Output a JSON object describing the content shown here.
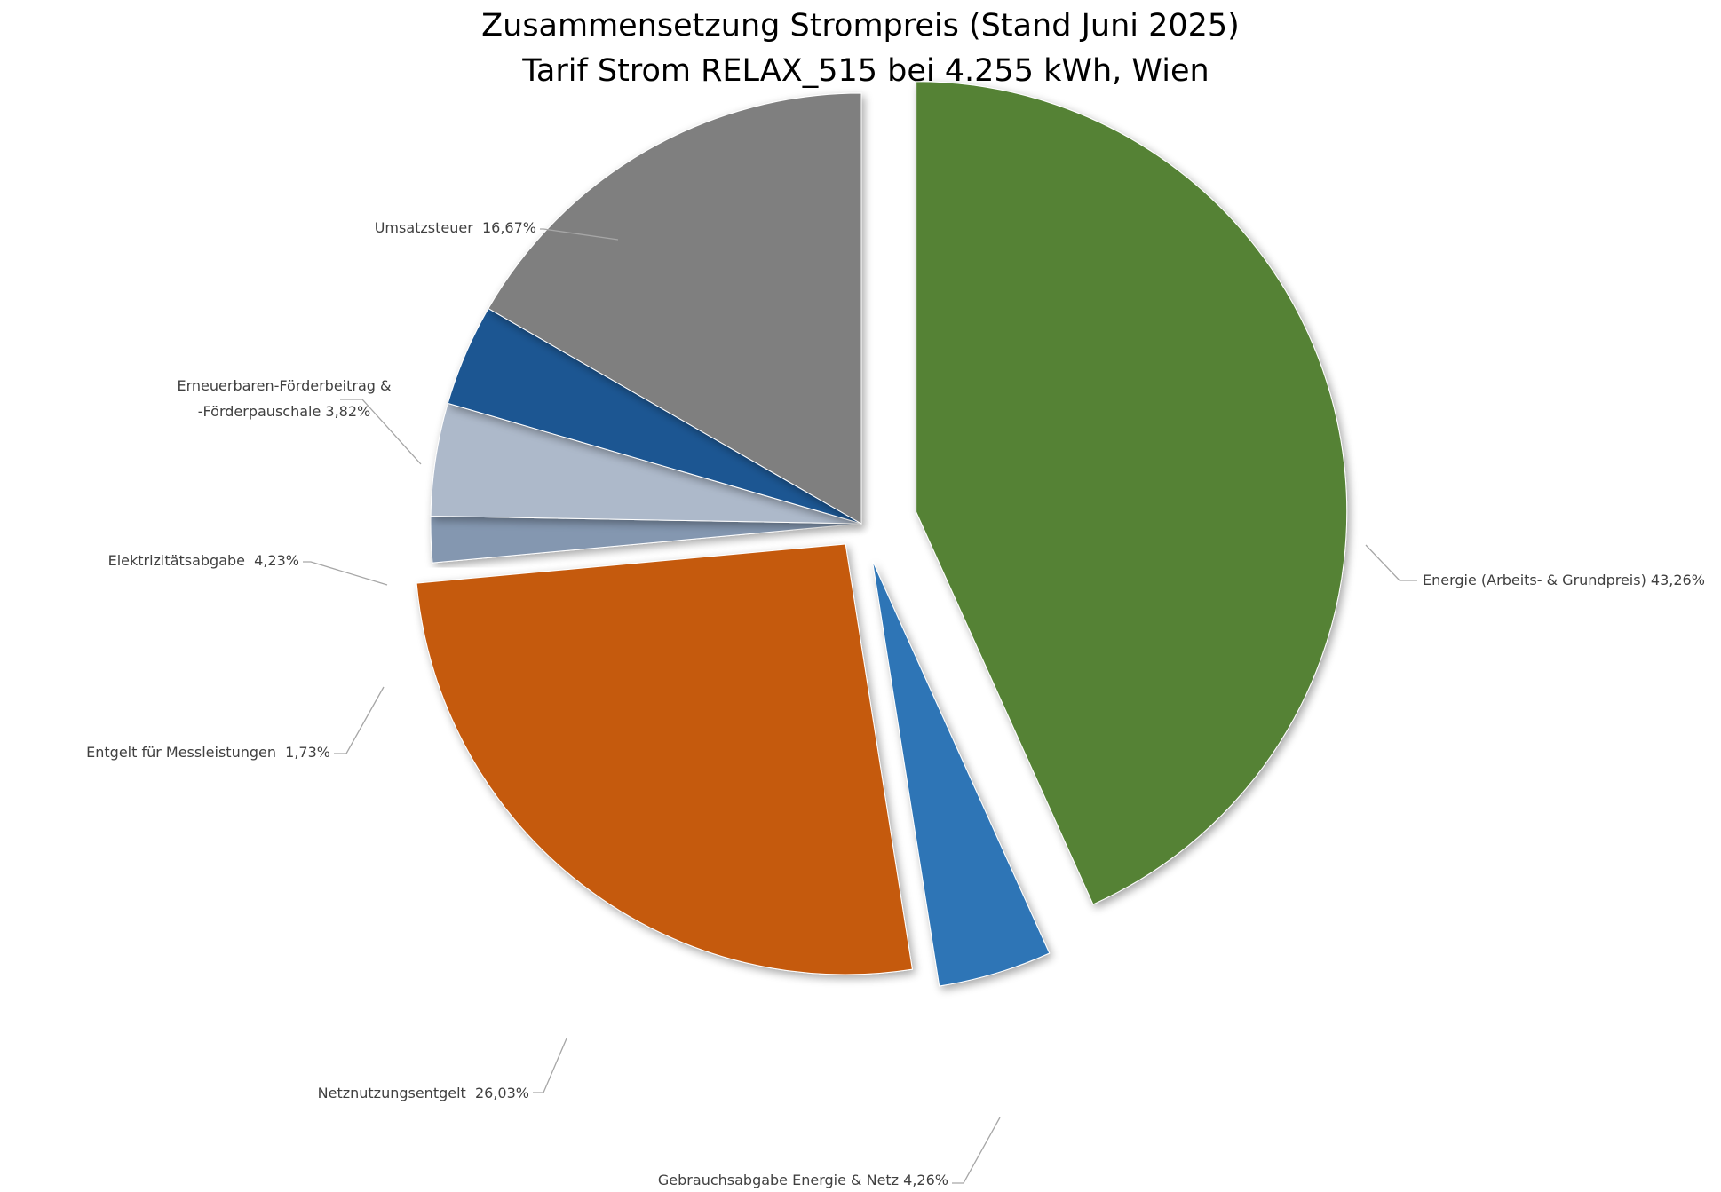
{
  "chart_data": {
    "type": "pie",
    "title": "Zusammensetzung Strompreis (Stand Juni 2025)",
    "subtitle": "Tarif Strom RELAX_515 bei 4.255 kWh, Wien",
    "slices": [
      {
        "name": "Energie (Arbeits- & Grundpreis)",
        "value": 43.26,
        "label": "43,26%",
        "color": "#548235",
        "explode": 0.13,
        "label_lines": [
          "Energie (Arbeits- & Grundpreis) 43,26%"
        ]
      },
      {
        "name": "Gebrauchsabgabe Energie & Netz",
        "value": 4.26,
        "label": "4,26%",
        "color": "#2e75b6",
        "explode": 0.09,
        "label_lines": [
          "Gebrauchsabgabe Energie & Netz 4,26%"
        ]
      },
      {
        "name": "Netznutzungsentgelt",
        "value": 26.03,
        "label": "26,03%",
        "color": "#c55a11",
        "explode": 0.06,
        "label_lines": [
          "Netznutzungsentgelt  26,03%"
        ]
      },
      {
        "name": "Entgelt für Messleistungen",
        "value": 1.73,
        "label": "1,73%",
        "color": "#8497b0",
        "explode": 0.0,
        "label_lines": [
          "Entgelt für Messleistungen  1,73%"
        ]
      },
      {
        "name": "Elektrizitätsabgabe",
        "value": 4.23,
        "label": "4,23%",
        "color": "#adb9ca",
        "explode": 0.0,
        "label_lines": [
          "Elektrizitätsabgabe  4,23%"
        ]
      },
      {
        "name": "Erneuerbaren-Förderbeitrag & -Förderpauschale",
        "value": 3.82,
        "label": "3,82%",
        "color": "#1f5792",
        "explode": 0.0,
        "label_lines": [
          "Erneuerbaren-Förderbeitrag &",
          "-Förderpauschale 3,82%"
        ]
      },
      {
        "name": "Umsatzsteuer",
        "value": 16.67,
        "label": "16,67%",
        "color": "#7f7f7f",
        "explode": 0.0,
        "label_lines": [
          "Umsatzsteuer  16,67%"
        ]
      }
    ],
    "start_angle": "12 o'clock",
    "direction": "clockwise",
    "legend": "none"
  }
}
